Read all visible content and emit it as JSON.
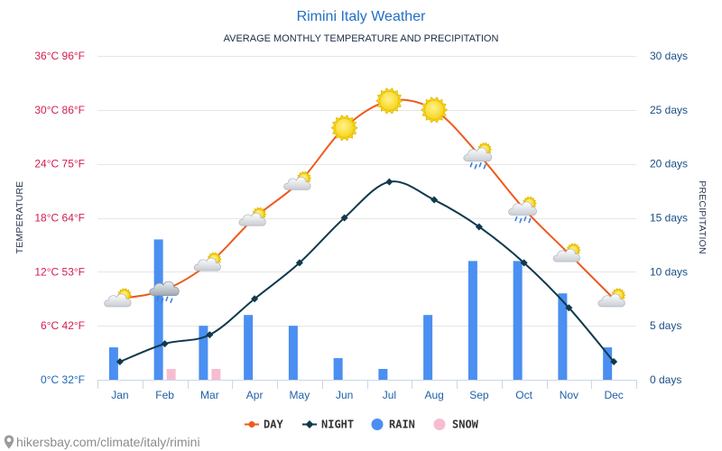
{
  "chart_data": {
    "type": "line",
    "title": "Rimini Italy Weather",
    "subtitle": "AVERAGE MONTHLY TEMPERATURE AND PRECIPITATION",
    "categories": [
      "Jan",
      "Feb",
      "Mar",
      "Apr",
      "May",
      "Jun",
      "Jul",
      "Aug",
      "Sep",
      "Oct",
      "Nov",
      "Dec"
    ],
    "left_axis": {
      "label": "TEMPERATURE",
      "ylim": [
        0,
        36
      ],
      "ticks": [
        {
          "value": 0,
          "label": "0°C 32°F"
        },
        {
          "value": 6,
          "label": "6°C 42°F"
        },
        {
          "value": 12,
          "label": "12°C 53°F"
        },
        {
          "value": 18,
          "label": "18°C 64°F"
        },
        {
          "value": 24,
          "label": "24°C 75°F"
        },
        {
          "value": 30,
          "label": "30°C 86°F"
        },
        {
          "value": 36,
          "label": "36°C 96°F"
        }
      ]
    },
    "right_axis": {
      "label": "PRECIPITATION",
      "ylim": [
        0,
        30
      ],
      "ticks": [
        {
          "value": 0,
          "label": "0 days"
        },
        {
          "value": 5,
          "label": "5 days"
        },
        {
          "value": 10,
          "label": "10 days"
        },
        {
          "value": 15,
          "label": "15 days"
        },
        {
          "value": 20,
          "label": "20 days"
        },
        {
          "value": 25,
          "label": "25 days"
        },
        {
          "value": 30,
          "label": "30 days"
        }
      ]
    },
    "lines": [
      {
        "name": "DAY",
        "values": [
          9,
          10,
          13,
          18,
          22,
          28,
          31,
          30,
          25,
          19,
          14,
          9
        ],
        "color": "#ef5a1c",
        "marker": "circle"
      },
      {
        "name": "NIGHT",
        "values": [
          2,
          4,
          5,
          9,
          13,
          18,
          22,
          20,
          17,
          13,
          8,
          2
        ],
        "color": "#11394d",
        "marker": "diamond"
      }
    ],
    "bars": [
      {
        "name": "RAIN",
        "values": [
          3,
          13,
          5,
          6,
          5,
          2,
          1,
          6,
          11,
          11,
          8,
          3
        ],
        "color": "#4a8ff1"
      },
      {
        "name": "SNOW",
        "values": [
          0,
          1,
          1,
          0,
          0,
          0,
          0,
          0,
          0,
          0,
          0,
          0
        ],
        "color": "#f8bcd0"
      }
    ],
    "icons": [
      "partly-cloudy",
      "rain",
      "partly-cloudy",
      "partly-cloudy",
      "partly-cloudy",
      "sunny",
      "sunny",
      "sunny",
      "partly-cloudy-rain",
      "partly-cloudy-rain",
      "partly-cloudy",
      "partly-cloudy"
    ],
    "legend": "bottom-center",
    "grid": true
  },
  "watermark": "hikersbay.com/climate/italy/rimini"
}
